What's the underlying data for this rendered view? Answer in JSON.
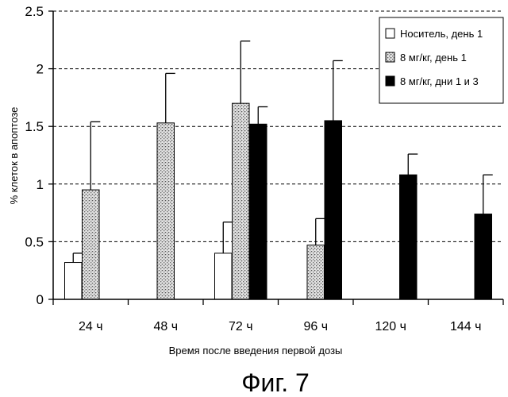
{
  "chart_data": {
    "type": "bar",
    "title": "",
    "xlabel": "Время после введения первой дозы",
    "ylabel": "% клеток в апоптозе",
    "categories": [
      "24 ч",
      "48 ч",
      "72 ч",
      "96 ч",
      "120 ч",
      "144 ч"
    ],
    "ylim": [
      0,
      2.5
    ],
    "yticks": [
      0,
      0.5,
      1,
      1.5,
      2,
      2.5
    ],
    "ytick_labels": [
      "0",
      "0.5",
      "1",
      "1.5",
      "2",
      "2.5"
    ],
    "grid": "horizontal-dashed",
    "legend_position": "top-right",
    "series": [
      {
        "name": "Носитель, день 1",
        "fill": "white",
        "values": [
          0.32,
          null,
          0.4,
          null,
          null,
          null
        ],
        "errors": [
          0.08,
          null,
          0.27,
          null,
          null,
          null
        ]
      },
      {
        "name": "8 мг/кг, день 1",
        "fill": "dotted",
        "values": [
          0.95,
          1.53,
          1.7,
          0.47,
          null,
          null
        ],
        "errors": [
          0.59,
          0.43,
          0.54,
          0.23,
          null,
          null
        ]
      },
      {
        "name": "8 мг/кг, дни 1 и 3",
        "fill": "black",
        "values": [
          null,
          null,
          1.52,
          1.55,
          1.08,
          0.74
        ],
        "errors": [
          null,
          null,
          0.15,
          0.52,
          0.18,
          0.34
        ]
      }
    ]
  },
  "caption": "Фиг. 7"
}
